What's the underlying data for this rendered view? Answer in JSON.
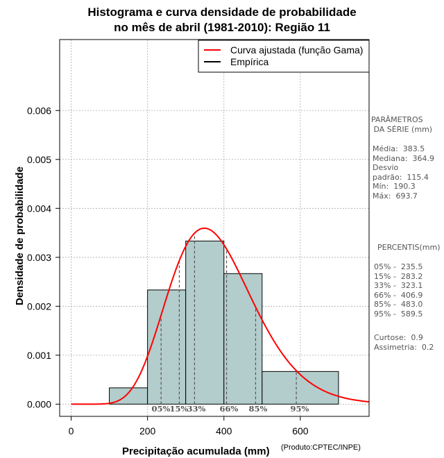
{
  "title_line1": "Histograma e curva densidade de probabilidade",
  "title_line2": "no mês de abril (1981-2010): Região 11",
  "chart_data": {
    "type": "histogram",
    "xlabel": "Precipitação acumulada (mm)",
    "ylabel": "Densidade de probabilidade",
    "credit": "(Produto:CPTEC/INPE)",
    "xlim": [
      -30,
      780
    ],
    "ylim": [
      -0.00025,
      0.00745
    ],
    "x_ticks": [
      0,
      200,
      400,
      600
    ],
    "y_ticks": [
      0.0,
      0.001,
      0.002,
      0.003,
      0.004,
      0.005,
      0.006
    ],
    "y_tick_labels": [
      "0.000",
      "0.001",
      "0.002",
      "0.003",
      "0.004",
      "0.005",
      "0.006"
    ],
    "grid": true,
    "bins": [
      {
        "from": 100,
        "to": 200,
        "density": 0.000333
      },
      {
        "from": 200,
        "to": 300,
        "density": 0.002333
      },
      {
        "from": 300,
        "to": 400,
        "density": 0.003333
      },
      {
        "from": 400,
        "to": 500,
        "density": 0.002667
      },
      {
        "from": 500,
        "to": 700,
        "density": 0.000667
      }
    ],
    "bar_color": "#b3cccc",
    "curve": {
      "name": "Curva ajustada (função Gama)",
      "color": "#ff0000",
      "mean": 383.5,
      "sd": 115.4
    },
    "legend": [
      {
        "label": "Curva ajustada (função Gama)",
        "color": "#ff0000"
      },
      {
        "label": "Empírica",
        "color": "#000000"
      }
    ],
    "legend_position": "top-right",
    "percentiles": [
      {
        "label": "05%",
        "value": 235.5
      },
      {
        "label": "15%",
        "value": 283.2
      },
      {
        "label": "33%",
        "value": 323.1
      },
      {
        "label": "66%",
        "value": 406.9
      },
      {
        "label": "85%",
        "value": 483.0
      },
      {
        "label": "95%",
        "value": 589.5
      }
    ]
  },
  "stats_panel": {
    "params_title_1": "PARÂMETROS",
    "params_title_2": " DA SÉRIE (mm)",
    "media": "Média:  383.5",
    "mediana": "Mediana:  364.9",
    "desvio_1": "Desvio",
    "desvio_2": "padrão:  115.4",
    "min": "Mín:  190.3",
    "max": "Máx:  693.7",
    "pct_title": "PERCENTIS(mm)",
    "p05": "05% -  235.5",
    "p15": "15% -  283.2",
    "p33": "33% -  323.1",
    "p66": "66% -  406.9",
    "p85": "85% -  483.0",
    "p95": "95% -  589.5",
    "curtose": "Curtose:  0.9",
    "assimetria": "Assimetria:  0.2"
  }
}
